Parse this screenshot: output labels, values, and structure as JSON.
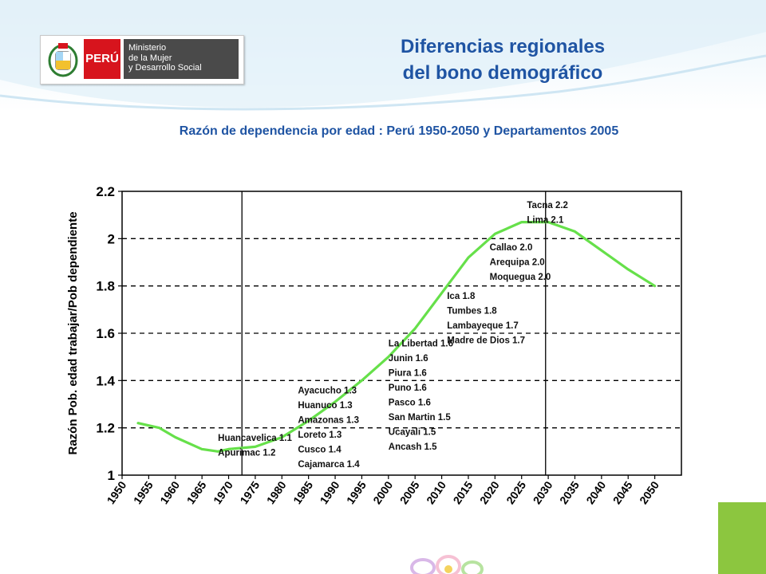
{
  "logo": {
    "country": "PERÚ",
    "ministry_lines": [
      "Ministerio",
      "de la Mujer",
      "y Desarrollo Social"
    ]
  },
  "title_lines": [
    "Diferencias regionales",
    "del bono demográfico"
  ],
  "subtitle": "Razón de dependencia por edad : Perú 1950-2050  y Departamentos 2005",
  "colors": {
    "title": "#1f54a3",
    "series_line": "#66e04a",
    "logo_red": "#d7141d",
    "logo_grey": "#4a4a4a",
    "accent_green": "#8cc63f"
  },
  "chart_data": {
    "type": "line",
    "ylabel": "Razón Pob. edad trabajar/Pob dependiente",
    "xlabel": "",
    "x_ticks": [
      "1950",
      "1955",
      "1960",
      "1965",
      "1970",
      "1975",
      "1980",
      "1985",
      "1990",
      "1995",
      "2000",
      "2005",
      "2010",
      "2015",
      "2020",
      "2025",
      "2030",
      "2035",
      "2040",
      "2045",
      "2050"
    ],
    "y_ticks": [
      1,
      1.2,
      1.4,
      1.6,
      1.8,
      2,
      2.2
    ],
    "y_tick_labels": [
      "1",
      "1.2",
      "1.4",
      "1.6",
      "1.8",
      "2",
      "2.2"
    ],
    "xlim": [
      1950,
      2055
    ],
    "ylim": [
      1,
      2.2
    ],
    "grid": "horizontal dashed",
    "vertical_lines": [
      1972.5,
      2029.5
    ],
    "series": [
      {
        "x": [
          1953,
          1957,
          1960,
          1965,
          1968,
          1970,
          1975,
          1980,
          1985,
          1990,
          1995,
          2000,
          2005,
          2010,
          2015,
          2020,
          2025,
          2030,
          2035,
          2040,
          2045,
          2050
        ],
        "y": [
          1.22,
          1.2,
          1.16,
          1.11,
          1.1,
          1.11,
          1.12,
          1.16,
          1.23,
          1.31,
          1.4,
          1.5,
          1.62,
          1.77,
          1.92,
          2.02,
          2.07,
          2.07,
          2.03,
          1.95,
          1.87,
          1.8
        ]
      }
    ],
    "annotations": [
      {
        "lines": [
          "Huancavelica 1.1",
          "Apurimac 1.2"
        ],
        "x": 1968,
        "y": 1.145
      },
      {
        "lines": [
          "Ayacucho 1.3",
          "Huanuco 1.3",
          "Amazonas 1.3",
          "Loreto 1.3",
          "Cusco 1.4",
          "Cajamarca 1.4"
        ],
        "x": 1983,
        "y": 1.345
      },
      {
        "lines": [
          "La Libertad 1.6",
          "Junin 1.6",
          "Piura 1.6",
          "Puno 1.6",
          "Pasco 1.6",
          "San Martin 1.5",
          "Ucayali 1.5",
          "Ancash 1.5"
        ],
        "x": 2000,
        "y": 1.545
      },
      {
        "lines": [
          "Ica 1.8",
          "Tumbes 1.8",
          "Lambayeque 1.7",
          "Madre de Dios 1.7"
        ],
        "x": 2011,
        "y": 1.745
      },
      {
        "lines": [
          "Callao 2.0",
          "Arequipa 2.0",
          "Moquegua 2.0"
        ],
        "x": 2019,
        "y": 1.95
      },
      {
        "lines": [
          "Tacna 2.2",
          "Lima 2.1"
        ],
        "x": 2026,
        "y": 2.13
      }
    ]
  }
}
